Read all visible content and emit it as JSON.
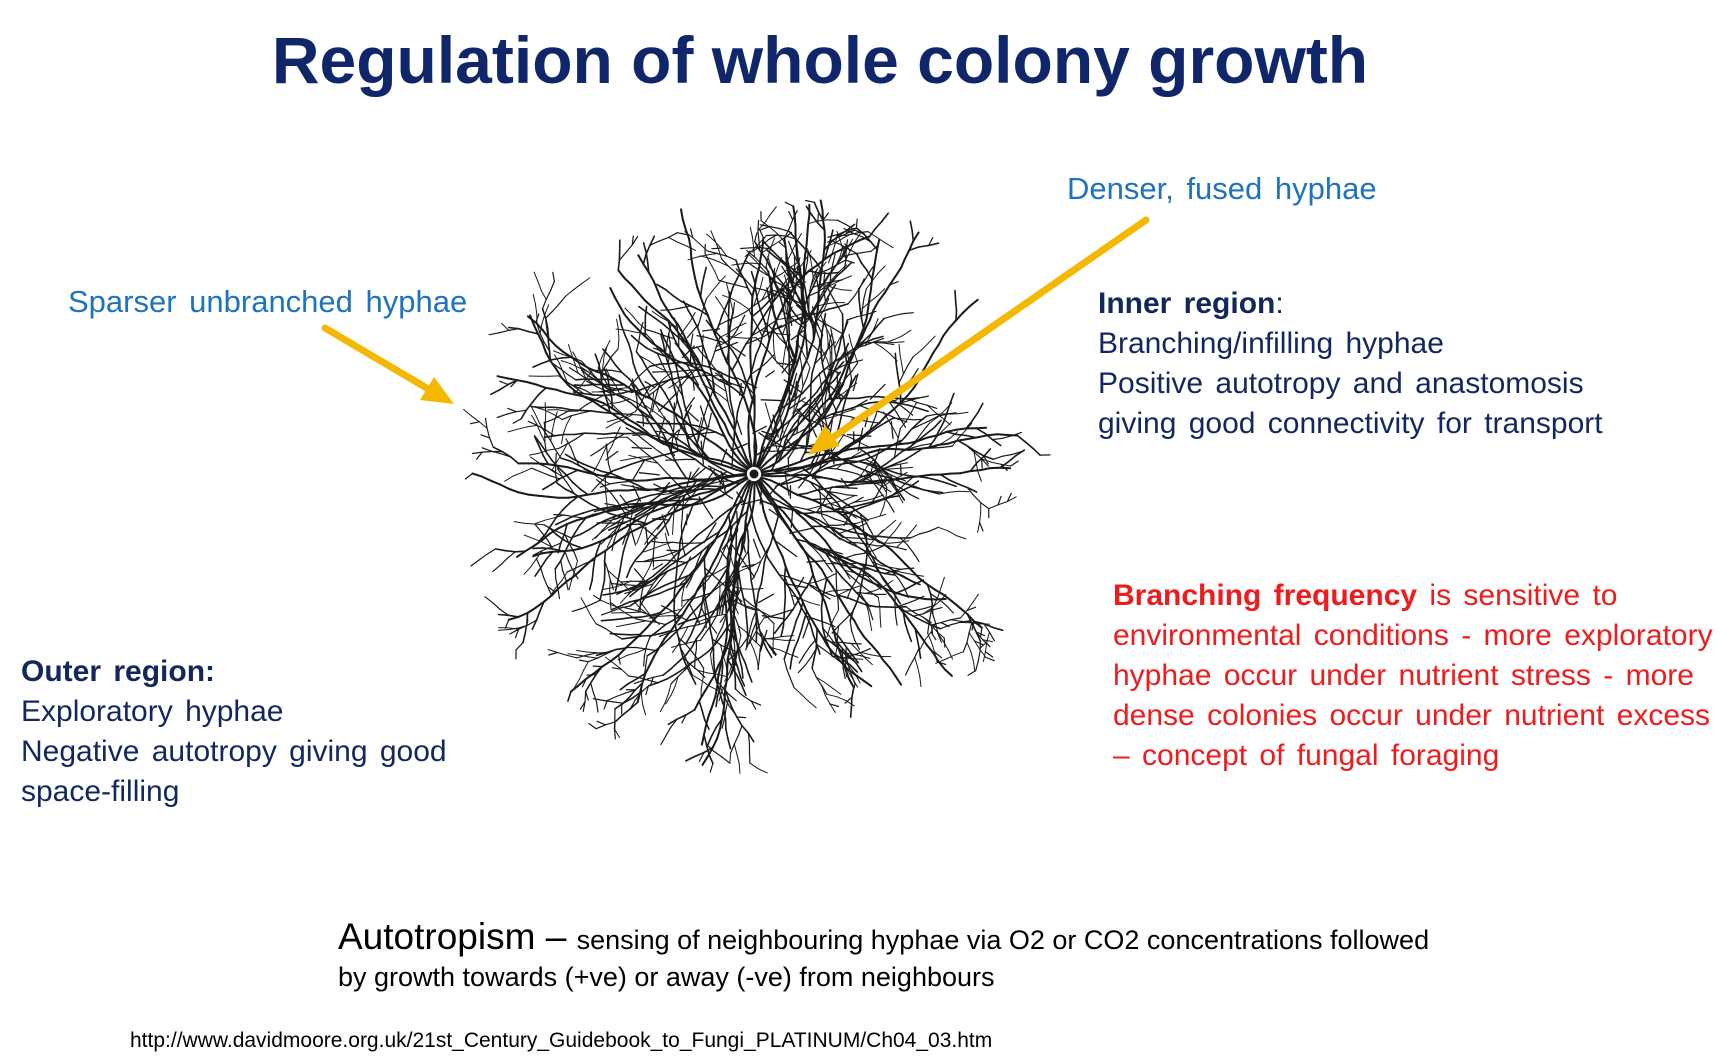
{
  "title": "Regulation of whole colony growth",
  "labels": {
    "sparser": "Sparser unbranched hyphae",
    "denser": "Denser, fused hyphae"
  },
  "inner": {
    "heading": "Inner region",
    "colon": ":",
    "line1": "Branching/infilling hyphae",
    "line2": "Positive autotropy and anastomosis",
    "line3": "giving good connectivity for transport"
  },
  "outer": {
    "heading": "Outer region:",
    "line1": "Exploratory hyphae",
    "line2": "Negative autotropy giving good",
    "line3": "space-filling"
  },
  "branching": {
    "bold": "Branching frequency",
    "text": " is sensitive to environmental conditions - more exploratory hyphae occur under nutrient stress - more dense colonies occur under nutrient excess – concept of fungal foraging"
  },
  "autotropism": {
    "term": "Autotropism",
    "dash": " – ",
    "line1": "sensing of neighbouring hyphae via O2 or CO2 concentrations followed",
    "line2": "by growth towards (+ve) or away (-ve) from neighbours"
  },
  "source_url": "http://www.davidmoore.org.uk/21st_Century_Guidebook_to_Fungi_PLATINUM/Ch04_03.htm",
  "colors": {
    "title": "#10266b",
    "annotation_blue": "#1e73be",
    "navy_text": "#12275e",
    "red_text": "#ee1c1c",
    "arrow": "#f5b800",
    "hyphae": "#1a1a1a"
  }
}
